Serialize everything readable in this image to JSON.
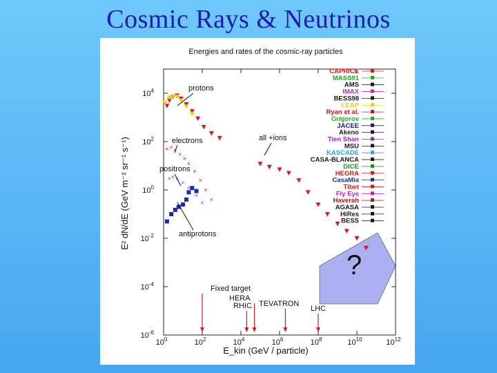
{
  "slide": {
    "title": "Cosmic Rays & Neutrinos"
  },
  "chart_data": {
    "type": "scatter",
    "title": "Energies and rates of the cosmic-ray particles",
    "xlabel": "E_kin  (GeV / particle)",
    "ylabel": "E² dN/dE  (GeV m⁻² sr⁻¹ s⁻¹)",
    "x_scale": "log",
    "y_scale": "log",
    "xlim": [
      1,
      1000000000000.0
    ],
    "ylim": [
      1e-06,
      100000.0
    ],
    "x_ticks": [
      {
        "value": 1,
        "base": "10",
        "exp": "0"
      },
      {
        "value": 100,
        "base": "10",
        "exp": "2"
      },
      {
        "value": 10000,
        "base": "10",
        "exp": "4"
      },
      {
        "value": 1000000,
        "base": "10",
        "exp": "6"
      },
      {
        "value": 100000000,
        "base": "10",
        "exp": "8"
      },
      {
        "value": 10000000000,
        "base": "10",
        "exp": "10"
      },
      {
        "value": 1000000000000,
        "base": "10",
        "exp": "12"
      }
    ],
    "y_ticks": [
      {
        "value": 10000,
        "base": "10",
        "exp": "4"
      },
      {
        "value": 100,
        "base": "10",
        "exp": "2"
      },
      {
        "value": 1,
        "base": "10",
        "exp": "0"
      },
      {
        "value": 0.01,
        "base": "10",
        "exp": "-2"
      },
      {
        "value": 0.0001,
        "base": "10",
        "exp": "-4"
      },
      {
        "value": 1e-06,
        "base": "10",
        "exp": "-6"
      }
    ],
    "legend_placement": "right",
    "legend": [
      {
        "name": "CAPRICE",
        "color": "#e0101a"
      },
      {
        "name": "MASS91",
        "color": "#1aa61a"
      },
      {
        "name": "AMS",
        "color": "#1a1a1a"
      },
      {
        "name": "IMAX",
        "color": "#c81ec8"
      },
      {
        "name": "BESS98",
        "color": "#1a1a1a"
      },
      {
        "name": "LEAP",
        "color": "#e6d21a"
      },
      {
        "name": "Ryan et al.",
        "color": "#c81414"
      },
      {
        "name": "Grigorov",
        "color": "#2aa62a"
      },
      {
        "name": "JACEE",
        "color": "#1a1a8c"
      },
      {
        "name": "Akeno",
        "color": "#1a1a1a"
      },
      {
        "name": "Tien Shan",
        "color": "#a01eb4"
      },
      {
        "name": "MSU",
        "color": "#1a1a1a"
      },
      {
        "name": "KASCADE",
        "color": "#1eaadc"
      },
      {
        "name": "CASA-BLANCA",
        "color": "#1a1a1a"
      },
      {
        "name": "DICE",
        "color": "#1e8c1e"
      },
      {
        "name": "HEGRA",
        "color": "#dc1414"
      },
      {
        "name": "CasaMia",
        "color": "#1a28a0"
      },
      {
        "name": "Tibet",
        "color": "#dc1414"
      },
      {
        "name": "Fly Eye",
        "color": "#c81ec8"
      },
      {
        "name": "Haverah",
        "color": "#b41414"
      },
      {
        "name": "AGASA",
        "color": "#1a1a1a"
      },
      {
        "name": "HiRes",
        "color": "#1a1a1a"
      },
      {
        "name": "BESS",
        "color": "#1a1a1a"
      }
    ],
    "annotations": {
      "protons": "protons",
      "electrons": "electrons",
      "positrons": "positrons",
      "antiprotons": "antiprotons",
      "all_ions": "all +ions",
      "question": "?",
      "fixed_target": "Fixed target",
      "hera": "HERA",
      "rhic": "RHIC",
      "tevatron": "TEVATRON",
      "lhc": "LHC"
    },
    "accelerator_markers": [
      {
        "name": "Fixed target",
        "energy_gev": 100
      },
      {
        "name": "HERA",
        "energy_gev": 50000
      },
      {
        "name": "RHIC",
        "energy_gev": 20000
      },
      {
        "name": "TEVATRON",
        "energy_gev": 2000000
      },
      {
        "name": "LHC",
        "energy_gev": 100000000
      }
    ],
    "series": [
      {
        "name": "protons",
        "color": "#d8161e",
        "points": [
          [
            1.5,
            3000
          ],
          [
            2,
            5000
          ],
          [
            3,
            7000
          ],
          [
            5,
            8000
          ],
          [
            8,
            6000
          ],
          [
            15,
            3500
          ],
          [
            30,
            1800
          ],
          [
            60,
            900
          ],
          [
            120,
            400
          ],
          [
            300,
            220
          ],
          [
            800,
            140
          ]
        ]
      },
      {
        "name": "LEAP / Grigorov (low energy)",
        "color": "#e6d21a",
        "points": [
          [
            1.2,
            4000
          ],
          [
            2,
            6500
          ],
          [
            3,
            7500
          ],
          [
            5,
            7200
          ],
          [
            8,
            5000
          ],
          [
            15,
            2800
          ],
          [
            30,
            1400
          ]
        ]
      },
      {
        "name": "electrons",
        "color": "#d8161e",
        "points": [
          [
            1.5,
            50
          ],
          [
            2.5,
            60
          ],
          [
            4,
            45
          ],
          [
            7,
            30
          ],
          [
            12,
            20
          ],
          [
            20,
            12
          ],
          [
            40,
            6
          ],
          [
            80,
            2.5
          ],
          [
            150,
            1
          ],
          [
            300,
            0.4
          ]
        ]
      },
      {
        "name": "positrons",
        "color": "#c81ec8",
        "points": [
          [
            2,
            3
          ],
          [
            3,
            3.5
          ],
          [
            5,
            3
          ],
          [
            10,
            2
          ],
          [
            20,
            1.2
          ],
          [
            50,
            0.6
          ],
          [
            100,
            0.3
          ]
        ]
      },
      {
        "name": "antiprotons",
        "color": "#1a2aa8",
        "points": [
          [
            1.5,
            0.05
          ],
          [
            2.5,
            0.1
          ],
          [
            4,
            0.15
          ],
          [
            6,
            0.2
          ],
          [
            10,
            0.25
          ],
          [
            15,
            0.4
          ],
          [
            20,
            0.8
          ],
          [
            30,
            1.2
          ],
          [
            50,
            0.9
          ]
        ]
      },
      {
        "name": "all +ions",
        "color": "#d8161e",
        "points": [
          [
            100000,
            12
          ],
          [
            300000,
            9
          ],
          [
            1000000,
            7
          ],
          [
            3000000,
            5
          ],
          [
            10000000,
            2.5
          ],
          [
            30000000,
            0.8
          ],
          [
            100000000,
            0.25
          ],
          [
            300000000,
            0.1
          ],
          [
            1000000000,
            0.04
          ],
          [
            3000000000,
            0.02
          ],
          [
            10000000000,
            0.01
          ],
          [
            30000000000,
            0.004
          ]
        ]
      }
    ]
  }
}
